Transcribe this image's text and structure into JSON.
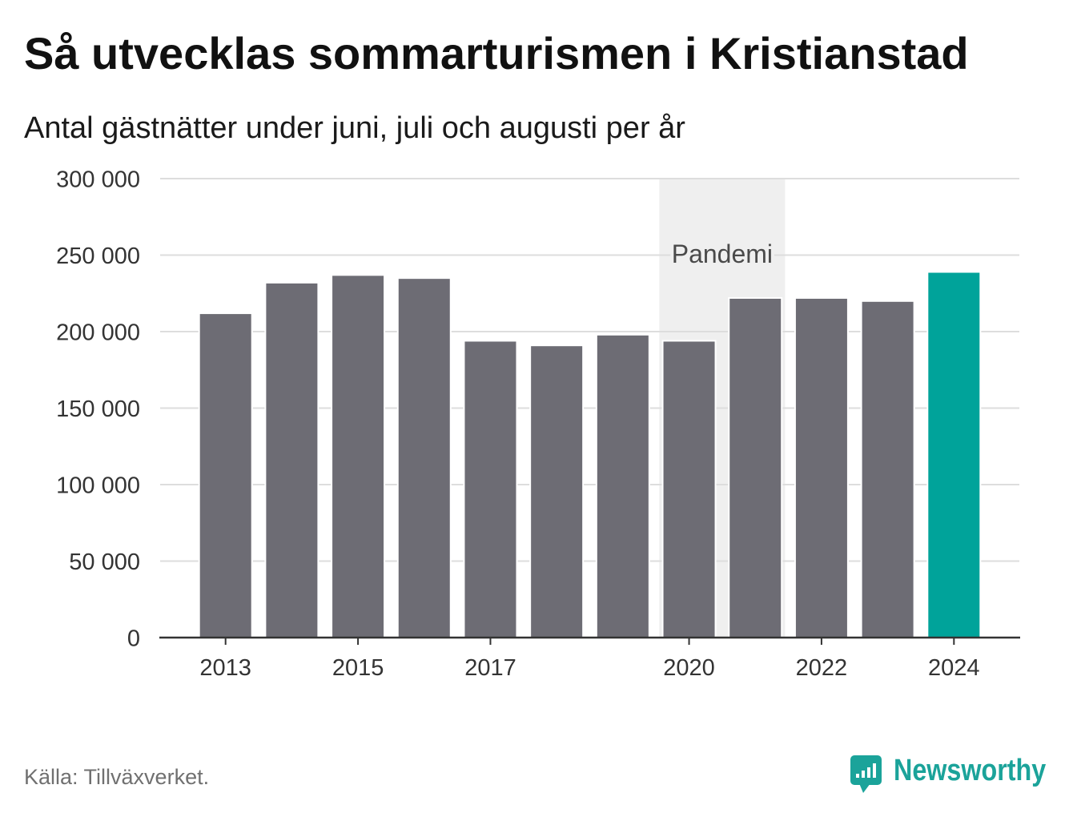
{
  "chart_data": {
    "type": "bar",
    "title": "Så utvecklas sommarturismen i Kristianstad",
    "subtitle": "Antal gästnätter under juni, juli och augusti per år",
    "x": [
      2013,
      2014,
      2015,
      2016,
      2017,
      2018,
      2019,
      2020,
      2021,
      2022,
      2023,
      2024
    ],
    "values": [
      212000,
      232000,
      237000,
      235000,
      194000,
      191000,
      198000,
      194000,
      222000,
      222000,
      220000,
      239000
    ],
    "highlighted_x": 2024,
    "xlim": [
      2012,
      2025
    ],
    "ylim": [
      0,
      300000
    ],
    "x_ticks": [
      {
        "value": 2013,
        "label": "2013"
      },
      {
        "value": 2015,
        "label": "2015"
      },
      {
        "value": 2017,
        "label": "2017"
      },
      {
        "value": 2020,
        "label": "2020"
      },
      {
        "value": 2022,
        "label": "2022"
      },
      {
        "value": 2024,
        "label": "2024"
      }
    ],
    "y_ticks": [
      {
        "value": 300000,
        "label": "300 000"
      },
      {
        "value": 250000,
        "label": "250 000"
      },
      {
        "value": 200000,
        "label": "200 000"
      },
      {
        "value": 150000,
        "label": "150 000"
      },
      {
        "value": 100000,
        "label": "100 000"
      },
      {
        "value": 50000,
        "label": "50 000"
      },
      {
        "value": 0,
        "label": "0"
      }
    ],
    "highlight_range": {
      "label": "Pandemi",
      "from": 2019.55,
      "to": 2021.45
    },
    "grid": true
  },
  "footer": {
    "source": "Källa: Tillväxverket.",
    "brand": {
      "name": "Newsworthy",
      "icon": "newsworthy-logo-icon"
    }
  },
  "colors": {
    "bar": "#6d6c74",
    "highlight_bar": "#00a39a",
    "range_band": "#efefef",
    "grid": "#dddddd",
    "axis": "#333333",
    "brand": "#1ba39a"
  }
}
